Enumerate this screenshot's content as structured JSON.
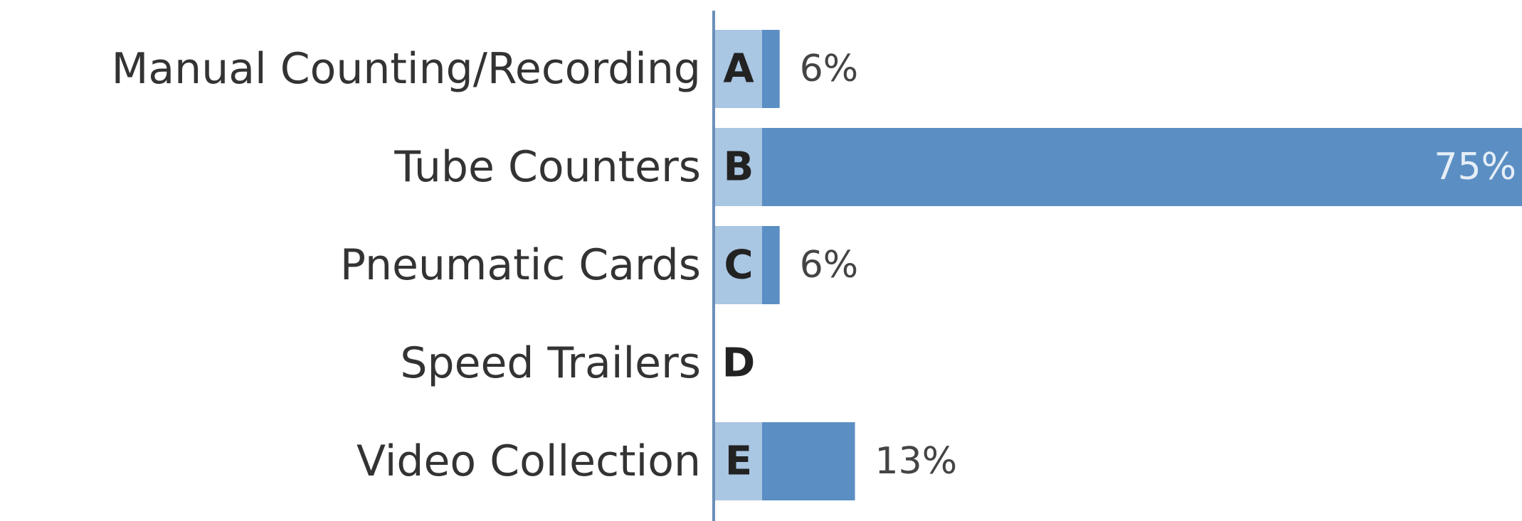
{
  "chart_data": {
    "type": "bar",
    "orientation": "horizontal",
    "categories": [
      "Manual Counting/Recording",
      "Tube Counters",
      "Pneumatic Cards",
      "Speed Trailers",
      "Video Collection"
    ],
    "letters": [
      "A",
      "B",
      "C",
      "D",
      "E"
    ],
    "values": [
      6,
      75,
      6,
      0,
      13
    ],
    "value_labels": [
      "6%",
      "75%",
      "6%",
      null,
      "13%"
    ],
    "color": "#5b8fc4",
    "xlim": [
      0,
      75
    ]
  }
}
